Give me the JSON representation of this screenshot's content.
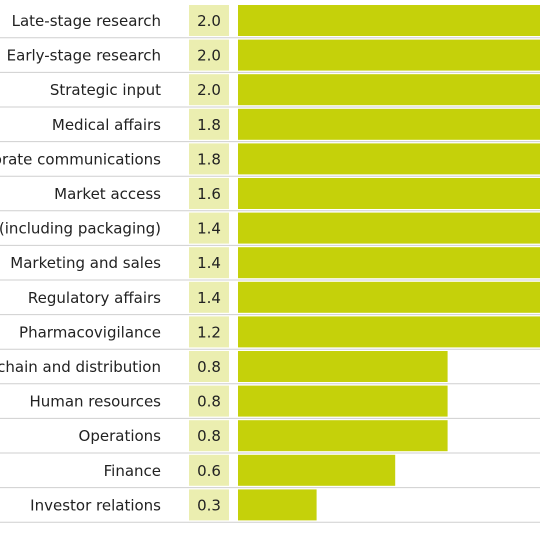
{
  "chart_data": {
    "type": "bar",
    "orientation": "horizontal",
    "categories": [
      "Late-stage research",
      "Early-stage research",
      "Strategic input",
      "Medical affairs",
      "Corporate communications",
      "Market access",
      "Manufacturing (including packaging)",
      "Marketing and sales",
      "Regulatory affairs",
      "Pharmacovigilance",
      "Supply chain and distribution",
      "Human resources",
      "Operations",
      "Finance",
      "Investor relations"
    ],
    "values": [
      2.0,
      2.0,
      2.0,
      1.8,
      1.8,
      1.6,
      1.4,
      1.4,
      1.4,
      1.2,
      0.8,
      0.8,
      0.8,
      0.6,
      0.3
    ],
    "value_labels": [
      "2.0",
      "2.0",
      "2.0",
      "1.8",
      "1.8",
      "1.6",
      "1.4",
      "1.4",
      "1.4",
      "1.2",
      "0.8",
      "0.8",
      "0.8",
      "0.6",
      "0.3"
    ],
    "xlim": [
      0,
      1.2
    ],
    "grid": false,
    "colors": {
      "bar": "#c5d10a",
      "value_box": "#ebeeb0",
      "row_line": "#cfcfcf",
      "text": "#222222"
    }
  }
}
